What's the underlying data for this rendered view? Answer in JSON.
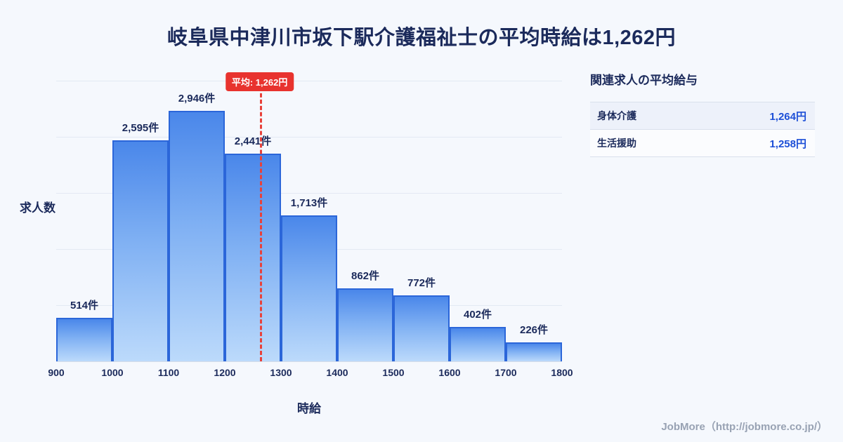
{
  "title": "岐阜県中津川市坂下駅介護福祉士の平均時給は1,262円",
  "chart_data": {
    "type": "bar",
    "title": "岐阜県中津川市坂下駅介護福祉士の平均時給は1,262円",
    "x_ticks": [
      900,
      1000,
      1100,
      1200,
      1300,
      1400,
      1500,
      1600,
      1700,
      1800
    ],
    "values": [
      514,
      2595,
      2946,
      2441,
      1713,
      862,
      772,
      402,
      226
    ],
    "bar_labels": [
      "514件",
      "2,595件",
      "2,946件",
      "2,441件",
      "1,713件",
      "862件",
      "772件",
      "402件",
      "226件"
    ],
    "xlabel": "時給",
    "ylabel": "求人数",
    "ylim": [
      0,
      3300
    ],
    "grid": true,
    "legend": "none",
    "average": 1262,
    "average_label": "平均: 1,262円"
  },
  "side_panel": {
    "title": "関連求人の平均給与",
    "rows": [
      {
        "label": "身体介護",
        "value": "1,264円"
      },
      {
        "label": "生活援助",
        "value": "1,258円"
      }
    ]
  },
  "footer": {
    "credit": "JobMore（http://jobmore.co.jp/）"
  },
  "colors": {
    "bar_top": "#4a87ea",
    "bar_bottom": "#bcdafb",
    "bar_border": "#2b66d9",
    "average_line": "#e8413a",
    "badge_bg": "#e8332e",
    "value_text": "#1d4fd7",
    "title_text": "#1b2a5b",
    "background": "#f5f8fd"
  }
}
